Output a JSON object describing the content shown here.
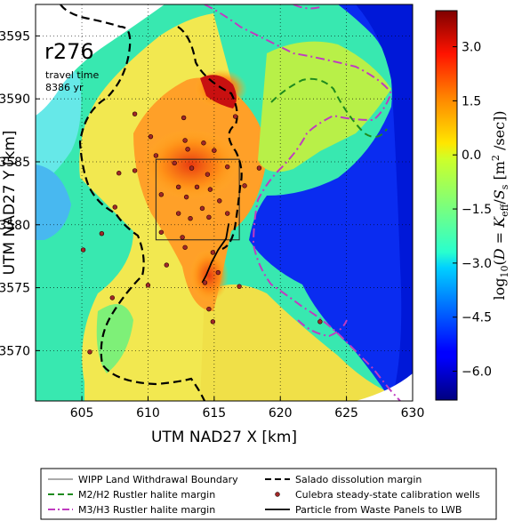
{
  "chart_data": {
    "type": "heatmap",
    "title": "",
    "xlabel": "UTM NAD27 X [km]",
    "ylabel": "UTM NAD27 Y [km]",
    "xlim": [
      601.5,
      630
    ],
    "ylim": [
      3566,
      3597.5
    ],
    "x_ticks": [
      605,
      610,
      615,
      620,
      625,
      630
    ],
    "y_ticks": [
      3570,
      3575,
      3580,
      3585,
      3590,
      3595
    ],
    "grid": true,
    "colorbar": {
      "label": "log10(D = K_eff / S_s [m²/sec])",
      "range": [
        -6.8,
        4.0
      ],
      "ticks": [
        3.0,
        1.5,
        0.0,
        -1.5,
        -3.0,
        -4.5,
        -6.0
      ],
      "tick_labels": [
        "3.0",
        "1.5",
        "0.0",
        "−1.5",
        "−3.0",
        "−4.5",
        "−6.0"
      ],
      "colormap": "jet"
    },
    "annotation": {
      "realization": "r276",
      "line1": "travel time",
      "line2": "8386 yr"
    },
    "wipp_boundary": {
      "x": [
        610.6,
        616.9
      ],
      "y": [
        3578.8,
        3585.2
      ]
    },
    "calibration_wells": [
      [
        609.0,
        3588.8
      ],
      [
        612.7,
        3588.5
      ],
      [
        610.2,
        3587.0
      ],
      [
        612.8,
        3586.7
      ],
      [
        610.6,
        3585.5
      ],
      [
        613.0,
        3586.0
      ],
      [
        614.2,
        3586.5
      ],
      [
        616.6,
        3588.6
      ],
      [
        615.0,
        3585.9
      ],
      [
        616.0,
        3584.6
      ],
      [
        618.4,
        3584.5
      ],
      [
        607.8,
        3584.1
      ],
      [
        609.0,
        3584.3
      ],
      [
        612.0,
        3584.9
      ],
      [
        613.3,
        3584.5
      ],
      [
        614.5,
        3584.0
      ],
      [
        613.7,
        3583.0
      ],
      [
        612.3,
        3583.0
      ],
      [
        614.7,
        3582.8
      ],
      [
        617.3,
        3583.1
      ],
      [
        611.0,
        3582.4
      ],
      [
        612.9,
        3582.2
      ],
      [
        614.1,
        3581.3
      ],
      [
        615.4,
        3581.9
      ],
      [
        612.3,
        3580.9
      ],
      [
        613.2,
        3580.5
      ],
      [
        614.6,
        3580.6
      ],
      [
        616.0,
        3580.9
      ],
      [
        607.5,
        3581.4
      ],
      [
        606.5,
        3579.3
      ],
      [
        611.0,
        3579.4
      ],
      [
        612.6,
        3579.0
      ],
      [
        605.1,
        3578.0
      ],
      [
        611.4,
        3576.8
      ],
      [
        612.8,
        3578.2
      ],
      [
        614.9,
        3577.8
      ],
      [
        615.3,
        3576.2
      ],
      [
        614.3,
        3575.4
      ],
      [
        610.0,
        3575.2
      ],
      [
        607.3,
        3574.2
      ],
      [
        614.6,
        3573.3
      ],
      [
        614.9,
        3572.3
      ],
      [
        616.9,
        3575.1
      ],
      [
        623.0,
        3572.3
      ],
      [
        605.6,
        3569.9
      ]
    ],
    "particle_path": [
      [
        616.1,
        3580.1
      ],
      [
        615.9,
        3578.9
      ],
      [
        615.3,
        3578.0
      ],
      [
        614.8,
        3577.0
      ],
      [
        614.4,
        3576.0
      ],
      [
        614.1,
        3575.4
      ]
    ],
    "legend": [
      "WIPP Land Withdrawal Boundary",
      "M2/H2 Rustler halite margin",
      "M3/H3 Rustler halite margin",
      "Salado dissolution margin",
      "Culebra steady-state calibration wells",
      "Particle from Waste Panels to LWB"
    ],
    "legend_placement": "bottom"
  }
}
